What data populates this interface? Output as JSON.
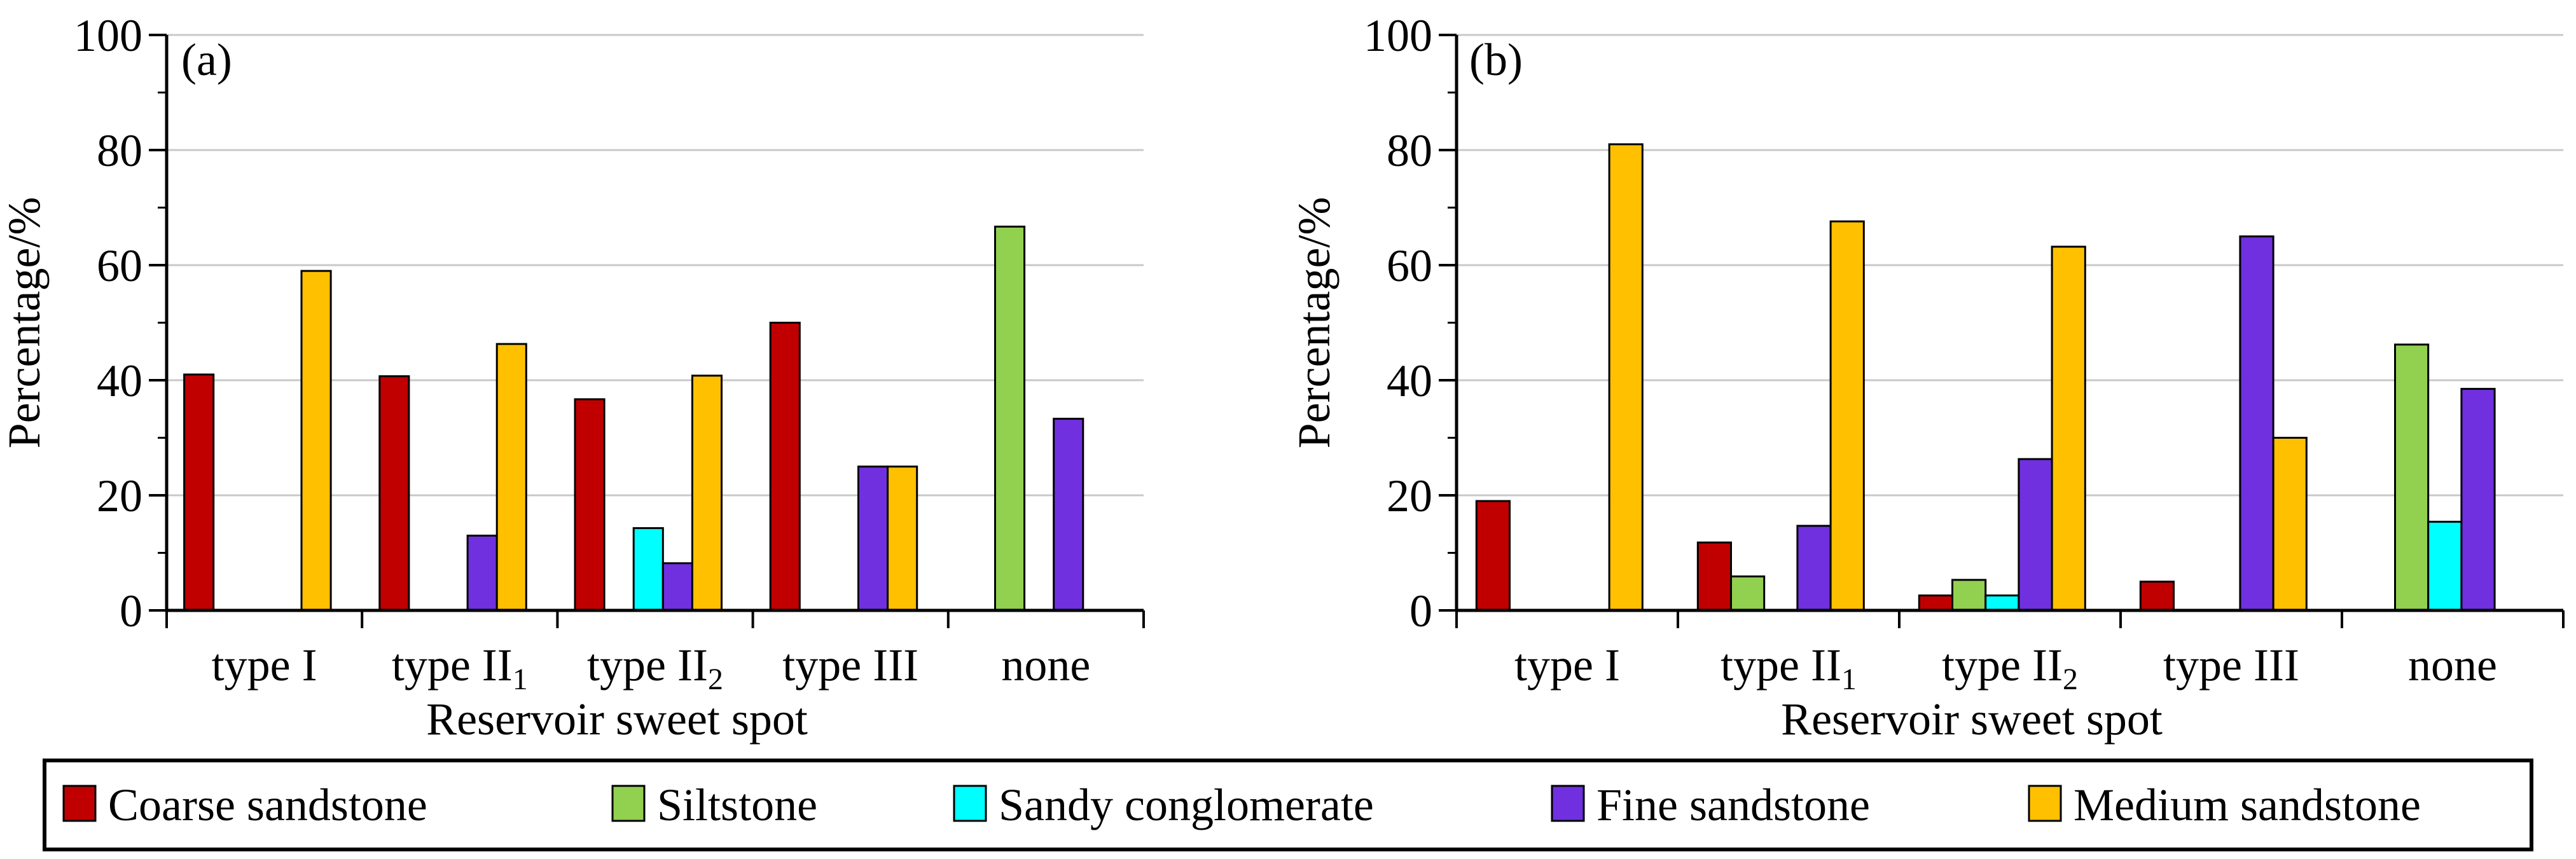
{
  "chart_data": [
    {
      "type": "bar",
      "panel_label": "(a)",
      "xlabel": "Reservoir sweet spot",
      "ylabel": "Percentage/%",
      "ylim": [
        0,
        100
      ],
      "yticks": [
        "0",
        "20",
        "40",
        "60",
        "80",
        "100"
      ],
      "grid": true,
      "categories": [
        {
          "main": "type I",
          "sub": ""
        },
        {
          "main": "type II",
          "sub": "1"
        },
        {
          "main": "type II",
          "sub": "2"
        },
        {
          "main": "type III",
          "sub": ""
        },
        {
          "main": "none",
          "sub": ""
        }
      ],
      "series": [
        {
          "name": "Coarse sandstone",
          "values": [
            41,
            40.7,
            36.7,
            50,
            0
          ]
        },
        {
          "name": "Siltstone",
          "values": [
            0,
            0,
            0,
            0,
            66.7
          ]
        },
        {
          "name": "Sandy conglomerate",
          "values": [
            0,
            0,
            14.3,
            0,
            0
          ]
        },
        {
          "name": "Fine sandstone",
          "values": [
            0,
            13,
            8.2,
            25,
            33.3
          ]
        },
        {
          "name": "Medium sandstone",
          "values": [
            59,
            46.3,
            40.8,
            25,
            0
          ]
        }
      ]
    },
    {
      "type": "bar",
      "panel_label": "(b)",
      "xlabel": "Reservoir sweet spot",
      "ylabel": "Percentage/%",
      "ylim": [
        0,
        100
      ],
      "yticks": [
        "0",
        "20",
        "40",
        "60",
        "80",
        "100"
      ],
      "grid": true,
      "categories": [
        {
          "main": "type I",
          "sub": ""
        },
        {
          "main": "type II",
          "sub": "1"
        },
        {
          "main": "type II",
          "sub": "2"
        },
        {
          "main": "type III",
          "sub": ""
        },
        {
          "main": "none",
          "sub": ""
        }
      ],
      "series": [
        {
          "name": "Coarse sandstone",
          "values": [
            19,
            11.8,
            2.6,
            5,
            0
          ]
        },
        {
          "name": "Siltstone",
          "values": [
            0,
            5.9,
            5.3,
            0,
            46.2
          ]
        },
        {
          "name": "Sandy conglomerate",
          "values": [
            0,
            0,
            2.6,
            0,
            15.4
          ]
        },
        {
          "name": "Fine sandstone",
          "values": [
            0,
            14.7,
            26.3,
            65,
            38.5
          ]
        },
        {
          "name": "Medium sandstone",
          "values": [
            81,
            67.6,
            63.2,
            30,
            0
          ]
        }
      ]
    }
  ],
  "legend": {
    "position": "bottom",
    "items": [
      {
        "name": "Coarse sandstone",
        "color": "#c00000"
      },
      {
        "name": "Siltstone",
        "color": "#92d050"
      },
      {
        "name": "Sandy conglomerate",
        "color": "#00ffff"
      },
      {
        "name": "Fine sandstone",
        "color": "#7030e0"
      },
      {
        "name": "Medium sandstone",
        "color": "#ffc000"
      }
    ]
  }
}
